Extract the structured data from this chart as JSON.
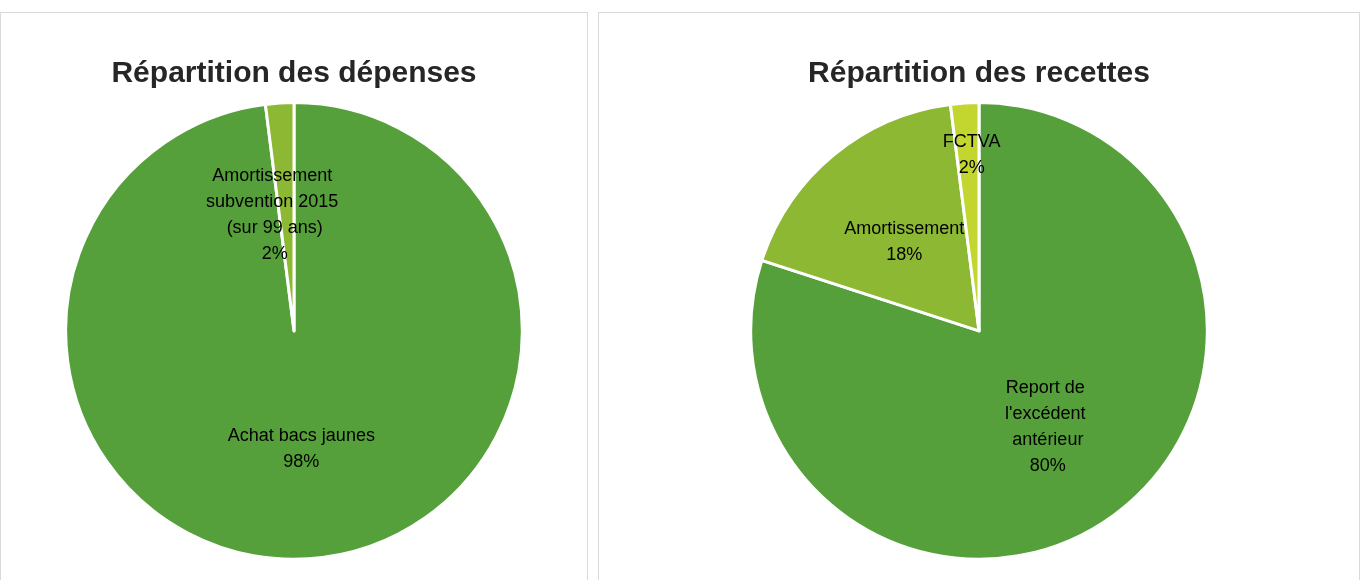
{
  "chart_data": [
    {
      "type": "pie",
      "title": "Répartition des dépenses",
      "categories": [
        "Achat bacs jaunes",
        "Amortissement subvention 2015 (sur 99 ans)"
      ],
      "values": [
        98,
        2
      ],
      "value_labels": [
        "98%",
        "2%"
      ],
      "colors": [
        "#55a03a",
        "#8cb833"
      ],
      "legend": false
    },
    {
      "type": "pie",
      "title": "Répartition des recettes",
      "categories": [
        "Report de l'excédent antérieur",
        "Amortissement",
        "FCTVA"
      ],
      "values": [
        80,
        18,
        2
      ],
      "value_labels": [
        "80%",
        "18%",
        "2%"
      ],
      "colors": [
        "#55a03a",
        "#8cb833",
        "#c3d62f"
      ],
      "legend": false
    }
  ]
}
